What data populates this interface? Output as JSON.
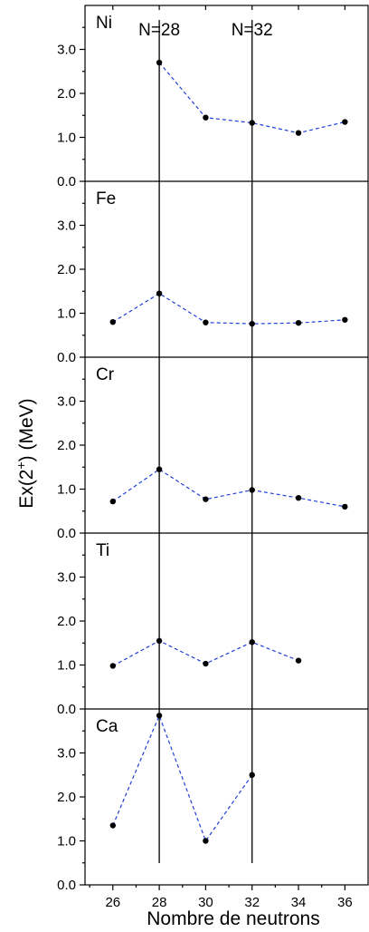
{
  "chart_data": {
    "type": "line",
    "ylabel_main": "Ex(2",
    "ylabel_sup": "+",
    "ylabel_tail": ") (MeV)",
    "xlabel": "Nombre de neutrons",
    "x_ticks": [
      26,
      28,
      30,
      32,
      34,
      36
    ],
    "y_ticks": [
      "0.0",
      "1.0",
      "2.0",
      "3.0"
    ],
    "y_tick_values": [
      0,
      1,
      2,
      3
    ],
    "xlim": [
      24.8,
      37.0
    ],
    "ylim": [
      0,
      4.0
    ],
    "magic_numbers": [
      {
        "label": "N=28",
        "x": 28
      },
      {
        "label": "N=32",
        "x": 32
      }
    ],
    "line_color": "#1f3fd6",
    "panels": [
      {
        "element": "Ni",
        "x": [
          28,
          30,
          32,
          34,
          36
        ],
        "values": [
          2.7,
          1.45,
          1.33,
          1.1,
          1.35
        ]
      },
      {
        "element": "Fe",
        "x": [
          26,
          28,
          30,
          32,
          34,
          36
        ],
        "values": [
          0.8,
          1.45,
          0.79,
          0.76,
          0.78,
          0.85
        ]
      },
      {
        "element": "Cr",
        "x": [
          26,
          28,
          30,
          32,
          34,
          36
        ],
        "values": [
          0.72,
          1.45,
          0.77,
          0.98,
          0.8,
          0.6
        ]
      },
      {
        "element": "Ti",
        "x": [
          26,
          28,
          30,
          32,
          34
        ],
        "values": [
          0.98,
          1.55,
          1.03,
          1.52,
          1.1
        ]
      },
      {
        "element": "Ca",
        "x": [
          26,
          28,
          30,
          32
        ],
        "values": [
          1.35,
          3.85,
          1.0,
          2.5
        ]
      }
    ]
  }
}
